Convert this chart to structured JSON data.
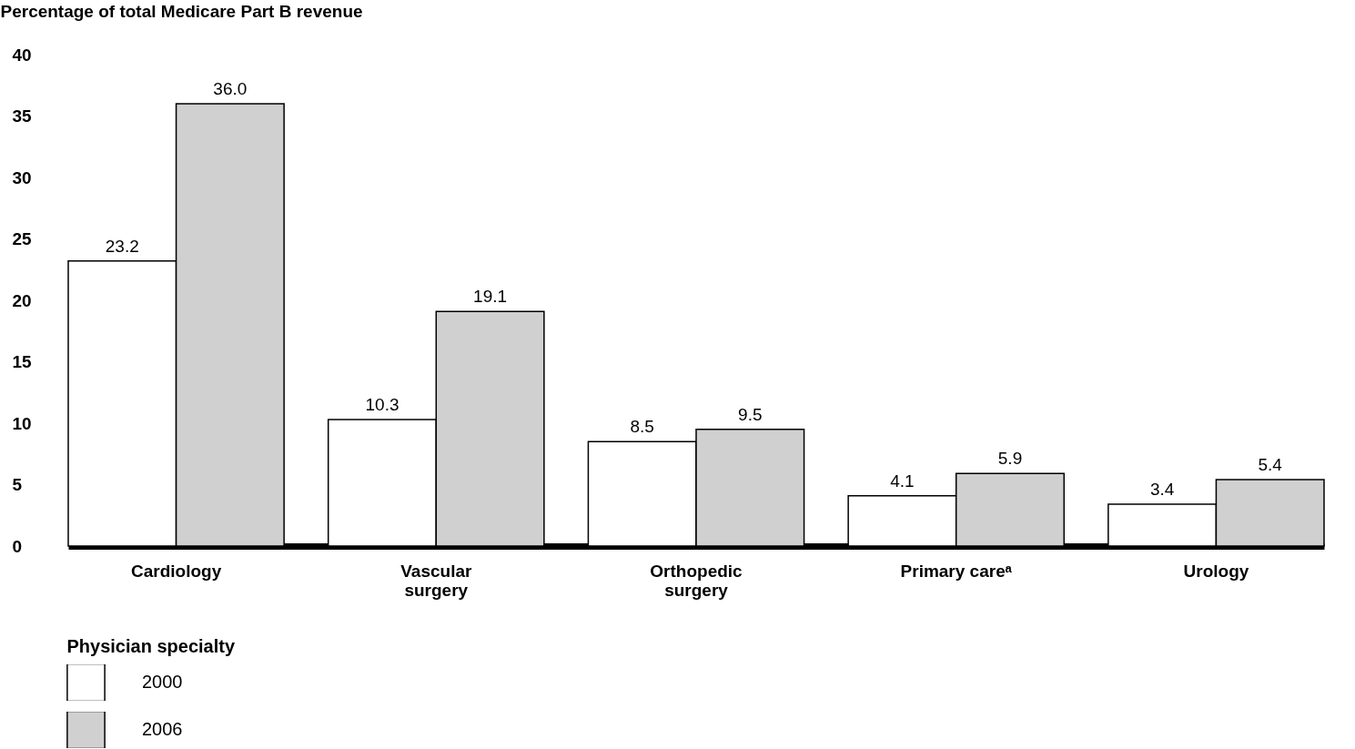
{
  "chart_data": {
    "type": "bar",
    "ylabel": "Percentage of total Medicare Part B revenue",
    "xlabel": "Physician specialty",
    "categories": [
      "Cardiology",
      "Vascular surgery",
      "Orthopedic surgery",
      "Primary careᵃ",
      "Urology"
    ],
    "series": [
      {
        "name": "2000",
        "color": "#ffffff",
        "values": [
          23.2,
          10.3,
          8.5,
          4.1,
          3.4
        ]
      },
      {
        "name": "2006",
        "color": "#d0d0d0",
        "values": [
          36.0,
          19.1,
          9.5,
          5.9,
          5.4
        ]
      }
    ],
    "value_labels": [
      [
        "23.2",
        "10.3",
        "8.5",
        "4.1",
        "3.4"
      ],
      [
        "36.0",
        "19.1",
        "9.5",
        "5.9",
        "5.4"
      ]
    ],
    "ylim": [
      0,
      40
    ],
    "yticks": [
      0,
      5,
      10,
      15,
      20,
      25,
      30,
      35,
      40
    ],
    "grid": false,
    "legend": "bottom left"
  }
}
